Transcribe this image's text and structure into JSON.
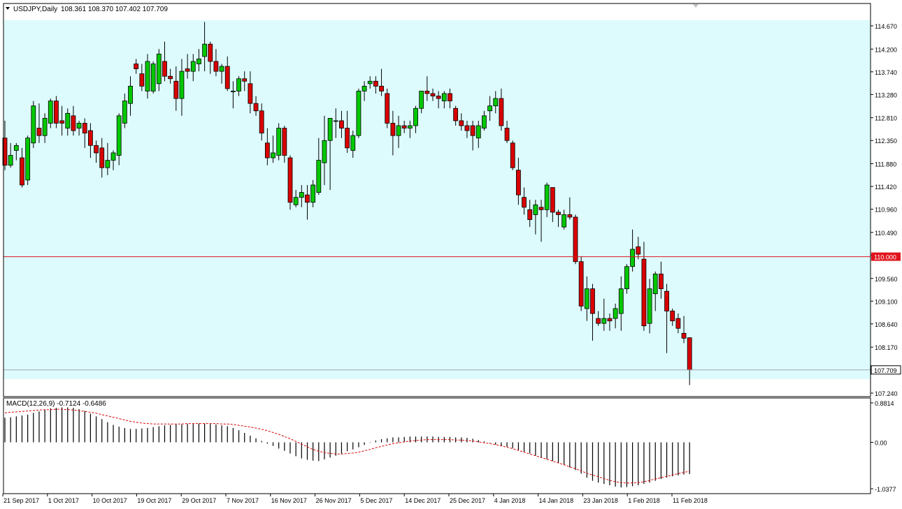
{
  "header": {
    "symbol_label": "USDJPY,Daily",
    "ohlc_label": "108.361 108.370 107.402 107.709"
  },
  "colors": {
    "background": "#ffffff",
    "band": "#ddfbfd",
    "bull": "#00c800",
    "bear": "#d90000",
    "hline": "#e0141e",
    "wick": "#000000",
    "macd_signal": "#d90000"
  },
  "chart_data": [
    {
      "type": "candlestick",
      "title": "USDJPY,Daily",
      "ylim": [
        107.24,
        114.67
      ],
      "y_ticks": [
        "114.670",
        "114.200",
        "113.740",
        "113.280",
        "112.810",
        "112.350",
        "111.880",
        "111.420",
        "110.960",
        "110.490",
        "110.030",
        "109.560",
        "109.100",
        "108.640",
        "108.170",
        "107.709",
        "107.240"
      ],
      "x_labels": [
        "21 Sep 2017",
        "1 Oct 2017",
        "10 Oct 2017",
        "19 Oct 2017",
        "29 Oct 2017",
        "7 Nov 2017",
        "16 Nov 2017",
        "26 Nov 2017",
        "5 Dec 2017",
        "14 Dec 2017",
        "25 Dec 2017",
        "4 Jan 2018",
        "14 Jan 2018",
        "23 Jan 2018",
        "1 Feb 2018",
        "11 Feb 2018"
      ],
      "horizontal_line": {
        "value": 110.0,
        "label": "110.000"
      },
      "current_price": {
        "value": 107.709,
        "label": "107.709"
      },
      "ohlc": [
        [
          112.4,
          112.75,
          111.75,
          111.85
        ],
        [
          111.85,
          112.3,
          111.8,
          112.05
        ],
        [
          112.15,
          112.3,
          111.95,
          112.25
        ],
        [
          112.0,
          112.2,
          111.4,
          111.45
        ],
        [
          111.55,
          112.45,
          111.45,
          112.4
        ],
        [
          112.3,
          113.15,
          112.2,
          113.05
        ],
        [
          112.6,
          113.1,
          112.3,
          112.45
        ],
        [
          112.45,
          112.9,
          112.3,
          112.8
        ],
        [
          112.7,
          113.2,
          112.6,
          113.15
        ],
        [
          113.15,
          113.25,
          112.6,
          112.7
        ],
        [
          112.75,
          113.05,
          112.45,
          112.7
        ],
        [
          112.6,
          113.0,
          112.45,
          112.9
        ],
        [
          112.85,
          113.05,
          112.45,
          112.55
        ],
        [
          112.6,
          112.75,
          112.45,
          112.7
        ],
        [
          112.7,
          112.8,
          112.2,
          112.5
        ],
        [
          112.55,
          112.7,
          112.0,
          112.25
        ],
        [
          112.25,
          112.35,
          111.9,
          112.1
        ],
        [
          112.2,
          112.4,
          111.6,
          111.8
        ],
        [
          111.8,
          112.3,
          111.65,
          111.95
        ],
        [
          111.95,
          112.15,
          111.75,
          112.1
        ],
        [
          112.05,
          112.9,
          111.85,
          112.85
        ],
        [
          112.7,
          113.3,
          112.6,
          113.15
        ],
        [
          113.1,
          113.65,
          112.85,
          113.45
        ],
        [
          113.9,
          114.0,
          113.7,
          113.8
        ],
        [
          113.7,
          113.9,
          113.35,
          113.45
        ],
        [
          113.35,
          114.1,
          113.2,
          113.95
        ],
        [
          113.35,
          113.95,
          113.3,
          113.9
        ],
        [
          113.5,
          114.2,
          113.35,
          114.1
        ],
        [
          113.95,
          114.35,
          113.55,
          113.65
        ],
        [
          113.65,
          113.8,
          113.5,
          113.6
        ],
        [
          113.55,
          113.85,
          112.95,
          113.2
        ],
        [
          113.2,
          114.0,
          112.85,
          113.75
        ],
        [
          113.8,
          114.1,
          113.6,
          113.75
        ],
        [
          113.75,
          114.1,
          113.55,
          113.95
        ],
        [
          113.9,
          114.2,
          113.75,
          114.0
        ],
        [
          114.05,
          114.75,
          113.75,
          114.3
        ],
        [
          114.3,
          114.35,
          113.7,
          113.95
        ],
        [
          113.95,
          114.2,
          113.65,
          113.75
        ],
        [
          113.75,
          113.9,
          113.5,
          113.85
        ],
        [
          113.85,
          114.05,
          113.35,
          113.4
        ],
        [
          113.35,
          113.55,
          113.0,
          113.35
        ],
        [
          113.35,
          113.65,
          113.25,
          113.6
        ],
        [
          113.6,
          113.75,
          113.35,
          113.55
        ],
        [
          113.5,
          113.75,
          112.9,
          113.1
        ],
        [
          113.1,
          113.25,
          112.85,
          112.95
        ],
        [
          112.95,
          113.1,
          112.35,
          112.5
        ],
        [
          112.3,
          112.6,
          111.85,
          112.0
        ],
        [
          112.0,
          112.45,
          111.9,
          112.1
        ],
        [
          112.05,
          112.7,
          111.95,
          112.6
        ],
        [
          112.6,
          112.65,
          111.9,
          112.05
        ],
        [
          112.0,
          112.05,
          110.95,
          111.1
        ],
        [
          111.05,
          111.35,
          111.0,
          111.2
        ],
        [
          111.2,
          111.45,
          111.0,
          111.3
        ],
        [
          111.25,
          111.45,
          110.75,
          111.1
        ],
        [
          111.1,
          111.55,
          111.0,
          111.45
        ],
        [
          111.3,
          112.4,
          111.25,
          111.95
        ],
        [
          111.9,
          112.85,
          111.45,
          112.35
        ],
        [
          112.35,
          112.75,
          111.35,
          112.8
        ],
        [
          112.75,
          113.0,
          112.4,
          112.75
        ],
        [
          112.75,
          112.95,
          112.4,
          112.6
        ],
        [
          112.6,
          112.95,
          112.1,
          112.2
        ],
        [
          112.15,
          112.55,
          112.0,
          112.45
        ],
        [
          112.45,
          113.4,
          112.4,
          113.35
        ],
        [
          113.35,
          113.55,
          113.15,
          113.45
        ],
        [
          113.5,
          113.65,
          113.4,
          113.55
        ],
        [
          113.55,
          113.65,
          113.3,
          113.45
        ],
        [
          113.45,
          113.8,
          113.25,
          113.35
        ],
        [
          113.3,
          113.4,
          112.6,
          112.7
        ],
        [
          112.7,
          112.95,
          112.05,
          112.45
        ],
        [
          112.45,
          112.85,
          112.2,
          112.65
        ],
        [
          112.65,
          112.75,
          112.5,
          112.6
        ],
        [
          112.6,
          112.75,
          112.4,
          112.65
        ],
        [
          112.65,
          113.05,
          112.5,
          113.0
        ],
        [
          113.0,
          113.35,
          112.9,
          113.35
        ],
        [
          113.35,
          113.65,
          113.15,
          113.3
        ],
        [
          113.3,
          113.4,
          113.15,
          113.25
        ],
        [
          113.25,
          113.35,
          113.0,
          113.2
        ],
        [
          113.15,
          113.35,
          113.0,
          113.3
        ],
        [
          113.3,
          113.4,
          113.0,
          113.15
        ],
        [
          113.0,
          113.05,
          112.65,
          112.75
        ],
        [
          112.75,
          112.9,
          112.55,
          112.65
        ],
        [
          112.65,
          112.75,
          112.4,
          112.55
        ],
        [
          112.65,
          112.75,
          112.15,
          112.45
        ],
        [
          112.4,
          112.75,
          112.2,
          112.65
        ],
        [
          112.6,
          112.95,
          112.55,
          112.85
        ],
        [
          112.95,
          113.25,
          112.75,
          113.05
        ],
        [
          113.05,
          113.35,
          112.9,
          113.2
        ],
        [
          113.2,
          113.4,
          112.55,
          112.65
        ],
        [
          112.6,
          112.75,
          112.3,
          112.35
        ],
        [
          112.3,
          112.35,
          111.75,
          111.8
        ],
        [
          111.75,
          112.0,
          111.05,
          111.25
        ],
        [
          111.2,
          111.4,
          110.85,
          111.0
        ],
        [
          110.95,
          111.15,
          110.6,
          110.75
        ],
        [
          110.85,
          111.15,
          110.45,
          111.05
        ],
        [
          111.0,
          111.15,
          110.3,
          110.95
        ],
        [
          110.95,
          111.5,
          110.8,
          111.45
        ],
        [
          111.4,
          111.4,
          110.7,
          110.9
        ],
        [
          110.9,
          110.95,
          110.6,
          110.85
        ],
        [
          110.6,
          110.95,
          110.55,
          110.85
        ],
        [
          110.85,
          111.2,
          110.75,
          110.8
        ],
        [
          110.8,
          110.85,
          109.85,
          109.9
        ],
        [
          109.9,
          110.0,
          108.9,
          109.0
        ],
        [
          108.95,
          109.6,
          108.7,
          109.35
        ],
        [
          109.35,
          109.45,
          108.3,
          108.85
        ],
        [
          108.75,
          108.9,
          108.6,
          108.65
        ],
        [
          108.65,
          109.15,
          108.5,
          108.75
        ],
        [
          108.75,
          108.85,
          108.5,
          108.7
        ],
        [
          108.75,
          109.05,
          108.55,
          108.95
        ],
        [
          108.85,
          109.6,
          108.5,
          109.35
        ],
        [
          109.35,
          109.85,
          109.25,
          109.8
        ],
        [
          109.8,
          110.55,
          109.7,
          110.15
        ],
        [
          110.2,
          110.4,
          109.95,
          110.05
        ],
        [
          109.95,
          110.3,
          108.5,
          108.6
        ],
        [
          108.65,
          109.55,
          108.45,
          109.35
        ],
        [
          109.25,
          109.7,
          108.9,
          109.65
        ],
        [
          109.65,
          109.9,
          109.15,
          109.35
        ],
        [
          109.3,
          109.45,
          108.05,
          108.9
        ],
        [
          108.9,
          108.95,
          108.6,
          108.7
        ],
        [
          108.75,
          108.85,
          108.45,
          108.55
        ],
        [
          108.45,
          108.8,
          108.25,
          108.35
        ],
        [
          108.36,
          108.37,
          107.4,
          107.71
        ]
      ]
    },
    {
      "type": "bar",
      "title": "MACD(12,26,9)",
      "label_text": "MACD(12,26,9) -0.7124 -0.6486",
      "ylim": [
        -1.0377,
        0.8814
      ],
      "y_ticks": [
        "0.8814",
        "0.00",
        "-1.0377"
      ],
      "series": [
        {
          "name": "MACD",
          "values": [
            0.55,
            0.56,
            0.58,
            0.6,
            0.62,
            0.66,
            0.69,
            0.73,
            0.76,
            0.77,
            0.78,
            0.78,
            0.77,
            0.74,
            0.7,
            0.64,
            0.58,
            0.52,
            0.45,
            0.39,
            0.35,
            0.32,
            0.3,
            0.3,
            0.31,
            0.32,
            0.34,
            0.36,
            0.38,
            0.39,
            0.4,
            0.4,
            0.41,
            0.41,
            0.42,
            0.42,
            0.41,
            0.4,
            0.38,
            0.36,
            0.32,
            0.27,
            0.21,
            0.15,
            0.09,
            0.03,
            -0.03,
            -0.08,
            -0.14,
            -0.19,
            -0.25,
            -0.31,
            -0.36,
            -0.39,
            -0.41,
            -0.42,
            -0.38,
            -0.34,
            -0.3,
            -0.25,
            -0.2,
            -0.16,
            -0.11,
            -0.06,
            -0.01,
            0.04,
            0.07,
            0.09,
            0.11,
            0.11,
            0.12,
            0.13,
            0.13,
            0.13,
            0.13,
            0.13,
            0.12,
            0.12,
            0.12,
            0.11,
            0.11,
            0.1,
            0.08,
            0.05,
            0.02,
            -0.01,
            -0.05,
            -0.08,
            -0.1,
            -0.13,
            -0.17,
            -0.21,
            -0.25,
            -0.3,
            -0.34,
            -0.38,
            -0.42,
            -0.46,
            -0.51,
            -0.56,
            -0.62,
            -0.7,
            -0.79,
            -0.86,
            -0.9,
            -0.93,
            -0.96,
            -0.99,
            -1.01,
            -1.0,
            -0.98,
            -0.96,
            -0.93,
            -0.9,
            -0.86,
            -0.82,
            -0.79,
            -0.76,
            -0.74,
            -0.72,
            -0.71
          ]
        },
        {
          "name": "Signal",
          "values": [
            0.66,
            0.67,
            0.68,
            0.69,
            0.7,
            0.71,
            0.72,
            0.73,
            0.73,
            0.74,
            0.74,
            0.73,
            0.72,
            0.71,
            0.69,
            0.67,
            0.65,
            0.62,
            0.59,
            0.56,
            0.53,
            0.5,
            0.47,
            0.45,
            0.43,
            0.42,
            0.41,
            0.41,
            0.41,
            0.41,
            0.41,
            0.41,
            0.42,
            0.42,
            0.42,
            0.42,
            0.42,
            0.42,
            0.41,
            0.41,
            0.4,
            0.38,
            0.36,
            0.34,
            0.32,
            0.29,
            0.26,
            0.22,
            0.18,
            0.13,
            0.08,
            0.02,
            -0.04,
            -0.1,
            -0.16,
            -0.2,
            -0.23,
            -0.25,
            -0.26,
            -0.26,
            -0.25,
            -0.24,
            -0.22,
            -0.19,
            -0.16,
            -0.12,
            -0.09,
            -0.06,
            -0.03,
            -0.01,
            0.01,
            0.03,
            0.04,
            0.05,
            0.06,
            0.06,
            0.06,
            0.06,
            0.06,
            0.05,
            0.05,
            0.04,
            0.03,
            0.01,
            -0.01,
            -0.03,
            -0.05,
            -0.08,
            -0.11,
            -0.14,
            -0.18,
            -0.22,
            -0.26,
            -0.3,
            -0.34,
            -0.38,
            -0.42,
            -0.46,
            -0.5,
            -0.55,
            -0.59,
            -0.64,
            -0.69,
            -0.73,
            -0.77,
            -0.81,
            -0.85,
            -0.88,
            -0.9,
            -0.91,
            -0.91,
            -0.9,
            -0.88,
            -0.85,
            -0.82,
            -0.79,
            -0.76,
            -0.73,
            -0.7,
            -0.67,
            -0.65
          ]
        }
      ]
    }
  ]
}
